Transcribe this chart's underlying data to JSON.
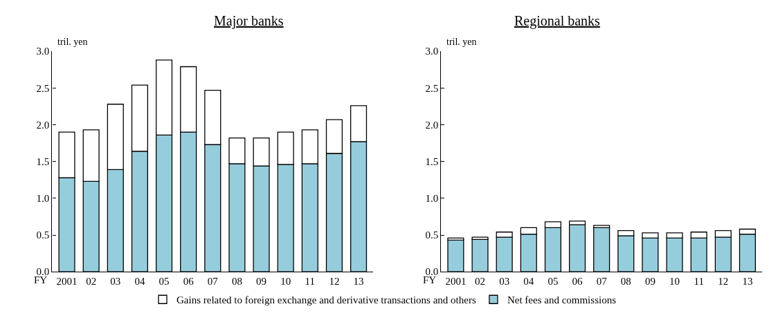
{
  "chart_data": [
    {
      "type": "bar",
      "title": "Major banks",
      "xlabel": "FY",
      "ylabel": "tril. yen",
      "categories": [
        "2001",
        "02",
        "03",
        "04",
        "05",
        "06",
        "07",
        "08",
        "09",
        "10",
        "11",
        "12",
        "13"
      ],
      "stacked": true,
      "ylim": [
        0,
        3.0
      ],
      "yticks": [
        {
          "value": 0,
          "label": "0.0"
        },
        {
          "value": 0.5,
          "label": "0.5"
        },
        {
          "value": 1,
          "label": "1.0"
        },
        {
          "value": 1.5,
          "label": "1.5"
        },
        {
          "value": 2,
          "label": "2.0"
        },
        {
          "value": 2.5,
          "label": "2.5"
        },
        {
          "value": 3,
          "label": "3.0"
        }
      ],
      "legend": "bottom",
      "series": [
        {
          "name": "Net fees and commissions",
          "color": "#96cddc",
          "values": [
            1.28,
            1.23,
            1.39,
            1.64,
            1.86,
            1.9,
            1.73,
            1.47,
            1.44,
            1.46,
            1.47,
            1.61,
            1.77
          ]
        },
        {
          "name": "Gains related to foreign exchange and derivative transactions and others",
          "color": "#ffffff",
          "values": [
            0.62,
            0.7,
            0.89,
            0.9,
            1.02,
            0.89,
            0.74,
            0.35,
            0.38,
            0.44,
            0.46,
            0.46,
            0.49
          ]
        }
      ]
    },
    {
      "type": "bar",
      "title": "Regional banks",
      "xlabel": "FY",
      "ylabel": "tril. yen",
      "categories": [
        "2001",
        "02",
        "03",
        "04",
        "05",
        "06",
        "07",
        "08",
        "09",
        "10",
        "11",
        "12",
        "13"
      ],
      "stacked": true,
      "ylim": [
        0,
        3.0
      ],
      "yticks": [
        {
          "value": 0,
          "label": "0.0"
        },
        {
          "value": 0.5,
          "label": "0.5"
        },
        {
          "value": 1,
          "label": "1.0"
        },
        {
          "value": 1.5,
          "label": "1.5"
        },
        {
          "value": 2,
          "label": "2.0"
        },
        {
          "value": 2.5,
          "label": "2.5"
        },
        {
          "value": 3,
          "label": "3.0"
        }
      ],
      "series": [
        {
          "color": "#96cddc",
          "values": [
            0.43,
            0.44,
            0.47,
            0.51,
            0.6,
            0.64,
            0.6,
            0.49,
            0.46,
            0.46,
            0.46,
            0.47,
            0.51
          ]
        },
        {
          "color": "#ffffff",
          "values": [
            0.03,
            0.03,
            0.07,
            0.09,
            0.08,
            0.05,
            0.03,
            0.07,
            0.07,
            0.07,
            0.08,
            0.09,
            0.07
          ]
        }
      ]
    }
  ]
}
